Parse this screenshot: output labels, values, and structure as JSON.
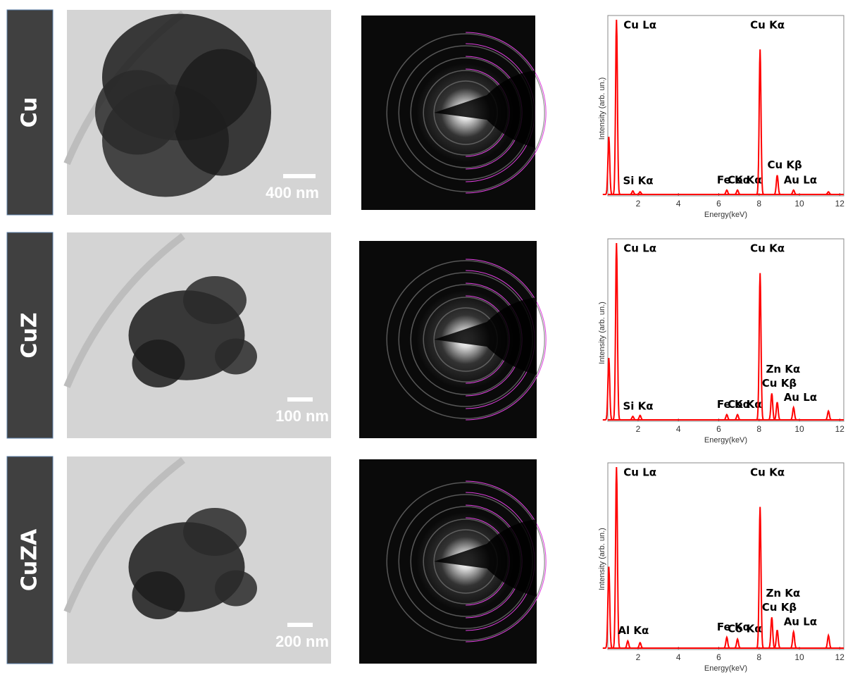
{
  "rows": [
    {
      "label": "Cu",
      "scale_bar": "400 nm"
    },
    {
      "label": "CuZ",
      "scale_bar": "100 nm"
    },
    {
      "label": "CuZA",
      "scale_bar": "200 nm"
    }
  ],
  "chart_data": [
    {
      "type": "line",
      "x_label": "Energy(keV)",
      "y_label": "Intensity (arb. un.)",
      "xlim": [
        0.5,
        12.2
      ],
      "ylim": [
        0,
        100
      ],
      "xticks": [
        2,
        4,
        6,
        8,
        10,
        12
      ],
      "color": "#ff0000",
      "peaks": {
        "x": [
          0.55,
          0.93,
          1.74,
          2.1,
          6.4,
          6.93,
          8.05,
          8.9,
          9.71,
          11.44
        ],
        "values": [
          33,
          100,
          2,
          1.5,
          2.5,
          2.5,
          83,
          11,
          2.5,
          1.5
        ],
        "labels": [
          null,
          "Cu Lα",
          "Si Kα",
          null,
          "Fe Kα",
          "Co Kα",
          "Cu Kα",
          "Cu Kβ",
          "Au Lα",
          null
        ]
      }
    },
    {
      "type": "line",
      "x_label": "Energy(keV)",
      "y_label": "Intensity (arb. un.)",
      "xlim": [
        0.5,
        12.2
      ],
      "ylim": [
        0,
        100
      ],
      "xticks": [
        2,
        4,
        6,
        8,
        10,
        12
      ],
      "color": "#ff0000",
      "peaks": {
        "x": [
          0.55,
          0.93,
          1.74,
          2.1,
          6.4,
          6.93,
          8.05,
          8.63,
          8.9,
          9.71,
          11.44
        ],
        "values": [
          35,
          100,
          2,
          2.5,
          3,
          3,
          83,
          15,
          10,
          7,
          5
        ],
        "labels": [
          null,
          "Cu Lα",
          "Si Kα",
          null,
          "Fe Kα",
          "Co Kα",
          "Cu Kα",
          "Cu Kβ",
          "Zn Kα",
          "Au Lα",
          null
        ]
      }
    },
    {
      "type": "line",
      "x_label": "Energy(keV)",
      "y_label": "Intensity (arb. un.)",
      "xlim": [
        0.5,
        12.2
      ],
      "ylim": [
        0,
        100
      ],
      "xticks": [
        2,
        4,
        6,
        8,
        10,
        12
      ],
      "color": "#ff0000",
      "peaks": {
        "x": [
          0.55,
          0.93,
          1.49,
          2.1,
          6.4,
          6.93,
          8.05,
          8.63,
          8.9,
          9.71,
          11.44
        ],
        "values": [
          45,
          100,
          4,
          3,
          6,
          5,
          78,
          17,
          10,
          9,
          7
        ],
        "labels": [
          null,
          "Cu Lα",
          "Al Kα",
          null,
          "Fe Kα",
          "Co Kα",
          "Cu Kα",
          "Cu Kβ",
          "Zn Kα",
          "Au Lα",
          null
        ]
      }
    }
  ]
}
